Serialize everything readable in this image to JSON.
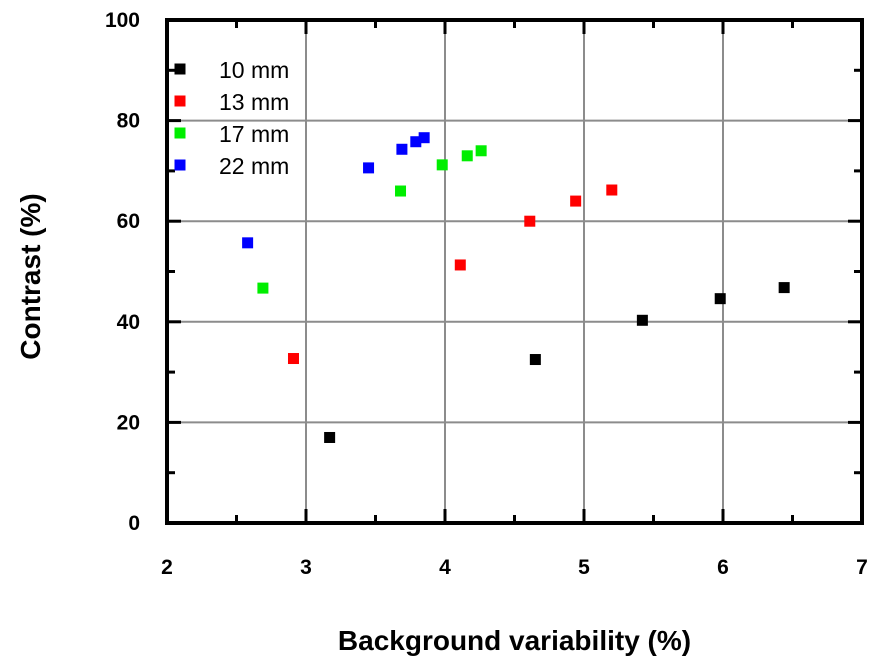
{
  "chart_data": {
    "type": "scatter",
    "title": "",
    "xlabel": "Background variability (%)",
    "ylabel": "Contrast (%)",
    "xlim": [
      2,
      7
    ],
    "ylim": [
      0,
      100
    ],
    "x_ticks": [
      "2",
      "3",
      "4",
      "5",
      "6",
      "7"
    ],
    "y_ticks": [
      "0",
      "20",
      "40",
      "60",
      "80",
      "100"
    ],
    "grid": true,
    "legend_position": "top-left",
    "series": [
      {
        "name": "10 mm",
        "color": "#000000",
        "points": [
          [
            3.17,
            17
          ],
          [
            4.65,
            32.5
          ],
          [
            5.42,
            40.3
          ],
          [
            5.98,
            44.6
          ],
          [
            6.44,
            46.8
          ]
        ]
      },
      {
        "name": "13 mm",
        "color": "#ff0000",
        "points": [
          [
            2.91,
            32.7
          ],
          [
            4.11,
            51.3
          ],
          [
            4.61,
            60
          ],
          [
            4.94,
            64
          ],
          [
            5.2,
            66.2
          ]
        ]
      },
      {
        "name": "17 mm",
        "color": "#00ee00",
        "points": [
          [
            2.69,
            46.7
          ],
          [
            3.68,
            66
          ],
          [
            3.98,
            71.2
          ],
          [
            4.16,
            73
          ],
          [
            4.26,
            74
          ]
        ]
      },
      {
        "name": "22 mm",
        "color": "#0000ff",
        "points": [
          [
            2.58,
            55.7
          ],
          [
            3.45,
            70.6
          ],
          [
            3.69,
            74.3
          ],
          [
            3.79,
            75.8
          ],
          [
            3.85,
            76.6
          ]
        ]
      }
    ]
  }
}
